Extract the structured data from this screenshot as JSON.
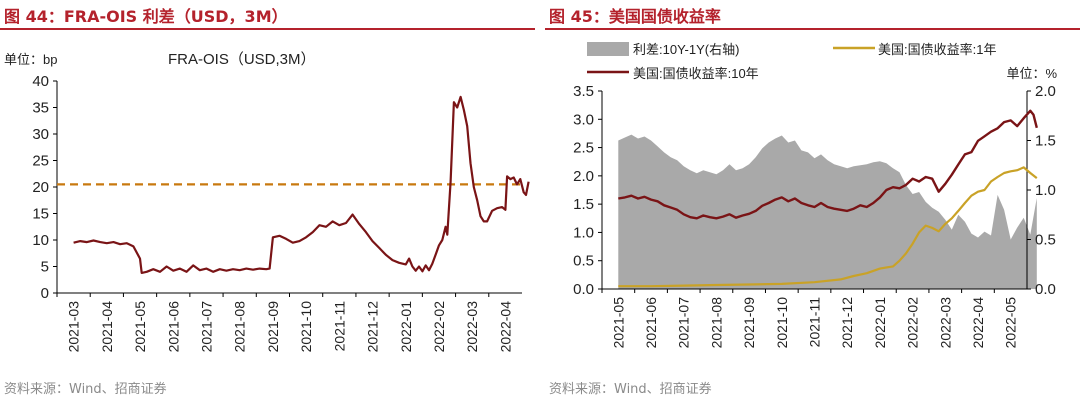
{
  "left": {
    "figure_title": "图 44：FRA-OIS 利差（USD，3M）",
    "source": "资料来源：Wind、招商证券",
    "unit_label": "单位：bp",
    "legend_label": "FRA-OIS（USD,3M）",
    "colors": {
      "line": "#7a1416",
      "ref": "#c8790f",
      "title": "#b4222c"
    }
  },
  "right": {
    "figure_title": "图 45：美国国债收益率",
    "source": "资料来源：Wind、招商证券",
    "unit_label": "单位：%",
    "legend": {
      "spread": "利差:10Y-1Y(右轴)",
      "y1": "美国:国债收益率:1年",
      "y10": "美国:国债收益率:10年"
    },
    "colors": {
      "spread": "#a9a9a9",
      "y1": "#c9a227",
      "y10": "#7a1416"
    }
  },
  "chart_data": [
    {
      "type": "line",
      "title": "FRA-OIS（USD,3M）",
      "ylabel": "bp",
      "ylim": [
        0,
        40
      ],
      "yticks": [
        0,
        5,
        10,
        15,
        20,
        25,
        30,
        35,
        40
      ],
      "xticks": [
        "2021-03",
        "2021-04",
        "2021-05",
        "2021-06",
        "2021-07",
        "2021-08",
        "2021-09",
        "2021-10",
        "2021-11",
        "2021-12",
        "2022-01",
        "2022-02",
        "2022-03",
        "2022-04"
      ],
      "grid": false,
      "reference_line": 20.5,
      "series": [
        {
          "name": "FRA-OIS（USD,3M）",
          "points": [
            [
              0,
              9.5
            ],
            [
              0.2,
              9.8
            ],
            [
              0.4,
              9.6
            ],
            [
              0.6,
              9.9
            ],
            [
              0.8,
              9.6
            ],
            [
              1.0,
              9.4
            ],
            [
              1.2,
              9.6
            ],
            [
              1.4,
              9.2
            ],
            [
              1.6,
              9.4
            ],
            [
              1.8,
              8.8
            ],
            [
              2.0,
              6.5
            ],
            [
              2.05,
              3.8
            ],
            [
              2.2,
              4.0
            ],
            [
              2.4,
              4.5
            ],
            [
              2.6,
              4.0
            ],
            [
              2.8,
              5.0
            ],
            [
              3.0,
              4.2
            ],
            [
              3.2,
              4.6
            ],
            [
              3.4,
              4.0
            ],
            [
              3.6,
              5.2
            ],
            [
              3.8,
              4.3
            ],
            [
              4.0,
              4.6
            ],
            [
              4.2,
              4.0
            ],
            [
              4.4,
              4.5
            ],
            [
              4.6,
              4.2
            ],
            [
              4.8,
              4.5
            ],
            [
              5.0,
              4.3
            ],
            [
              5.2,
              4.6
            ],
            [
              5.4,
              4.4
            ],
            [
              5.6,
              4.6
            ],
            [
              5.8,
              4.5
            ],
            [
              5.9,
              4.6
            ],
            [
              6.0,
              10.5
            ],
            [
              6.2,
              10.8
            ],
            [
              6.4,
              10.2
            ],
            [
              6.6,
              9.5
            ],
            [
              6.8,
              9.8
            ],
            [
              7.0,
              10.5
            ],
            [
              7.2,
              11.5
            ],
            [
              7.4,
              12.8
            ],
            [
              7.6,
              12.5
            ],
            [
              7.8,
              13.5
            ],
            [
              8.0,
              12.8
            ],
            [
              8.2,
              13.2
            ],
            [
              8.4,
              14.8
            ],
            [
              8.6,
              13.0
            ],
            [
              8.8,
              11.5
            ],
            [
              9.0,
              9.8
            ],
            [
              9.2,
              8.5
            ],
            [
              9.4,
              7.2
            ],
            [
              9.6,
              6.2
            ],
            [
              9.8,
              5.7
            ],
            [
              10.0,
              5.4
            ],
            [
              10.1,
              6.5
            ],
            [
              10.2,
              5.0
            ],
            [
              10.3,
              4.2
            ],
            [
              10.4,
              5.0
            ],
            [
              10.5,
              4.1
            ],
            [
              10.6,
              5.2
            ],
            [
              10.7,
              4.3
            ],
            [
              10.8,
              5.5
            ],
            [
              10.9,
              7.2
            ],
            [
              11.0,
              9.0
            ],
            [
              11.1,
              10.0
            ],
            [
              11.2,
              12.5
            ],
            [
              11.25,
              11.0
            ],
            [
              11.35,
              21.0
            ],
            [
              11.45,
              36.0
            ],
            [
              11.55,
              35.0
            ],
            [
              11.65,
              37.0
            ],
            [
              11.75,
              34.5
            ],
            [
              11.85,
              31.5
            ],
            [
              11.95,
              24.5
            ],
            [
              12.05,
              20.0
            ],
            [
              12.15,
              17.5
            ],
            [
              12.25,
              14.5
            ],
            [
              12.35,
              13.5
            ],
            [
              12.45,
              13.5
            ],
            [
              12.6,
              15.5
            ],
            [
              12.75,
              16.0
            ],
            [
              12.9,
              16.2
            ],
            [
              13.0,
              15.7
            ],
            [
              13.05,
              22.0
            ],
            [
              13.15,
              21.5
            ],
            [
              13.25,
              21.8
            ],
            [
              13.35,
              20.5
            ],
            [
              13.45,
              21.5
            ],
            [
              13.55,
              19.0
            ],
            [
              13.62,
              18.5
            ],
            [
              13.7,
              21.0
            ]
          ]
        }
      ]
    },
    {
      "type": "area",
      "title": "",
      "ylabel": "%",
      "ylim": [
        0,
        3.5
      ],
      "y2lim": [
        0,
        2.0
      ],
      "yticks": [
        0,
        0.5,
        1.0,
        1.5,
        2.0,
        2.5,
        3.0,
        3.5
      ],
      "y2ticks": [
        0,
        0.5,
        1.0,
        1.5,
        2.0
      ],
      "xticks": [
        "2021-05",
        "2021-06",
        "2021-07",
        "2021-08",
        "2021-09",
        "2021-10",
        "2021-11",
        "2021-12",
        "2022-01",
        "2022-02",
        "2022-03",
        "2022-04",
        "2022-05"
      ],
      "grid": false,
      "legend_position": "top",
      "series": [
        {
          "name": "利差:10Y-1Y(右轴)",
          "axis": "right",
          "kind": "area",
          "points": [
            [
              0,
              1.5
            ],
            [
              0.2,
              1.53
            ],
            [
              0.4,
              1.56
            ],
            [
              0.6,
              1.52
            ],
            [
              0.8,
              1.54
            ],
            [
              1.0,
              1.5
            ],
            [
              1.2,
              1.44
            ],
            [
              1.4,
              1.38
            ],
            [
              1.6,
              1.33
            ],
            [
              1.8,
              1.3
            ],
            [
              2.0,
              1.24
            ],
            [
              2.2,
              1.2
            ],
            [
              2.4,
              1.17
            ],
            [
              2.6,
              1.2
            ],
            [
              2.8,
              1.18
            ],
            [
              3.0,
              1.16
            ],
            [
              3.2,
              1.2
            ],
            [
              3.4,
              1.26
            ],
            [
              3.6,
              1.2
            ],
            [
              3.8,
              1.22
            ],
            [
              4.0,
              1.26
            ],
            [
              4.2,
              1.33
            ],
            [
              4.4,
              1.42
            ],
            [
              4.6,
              1.48
            ],
            [
              4.8,
              1.52
            ],
            [
              5.0,
              1.55
            ],
            [
              5.2,
              1.48
            ],
            [
              5.4,
              1.5
            ],
            [
              5.6,
              1.4
            ],
            [
              5.8,
              1.38
            ],
            [
              6.0,
              1.32
            ],
            [
              6.2,
              1.36
            ],
            [
              6.4,
              1.3
            ],
            [
              6.6,
              1.26
            ],
            [
              6.8,
              1.24
            ],
            [
              7.0,
              1.22
            ],
            [
              7.2,
              1.24
            ],
            [
              7.4,
              1.25
            ],
            [
              7.6,
              1.26
            ],
            [
              7.8,
              1.28
            ],
            [
              8.0,
              1.29
            ],
            [
              8.2,
              1.27
            ],
            [
              8.4,
              1.22
            ],
            [
              8.6,
              1.18
            ],
            [
              8.8,
              1.05
            ],
            [
              9.0,
              0.96
            ],
            [
              9.2,
              0.98
            ],
            [
              9.4,
              0.88
            ],
            [
              9.6,
              0.82
            ],
            [
              9.8,
              0.78
            ],
            [
              10.0,
              0.7
            ],
            [
              10.2,
              0.6
            ],
            [
              10.4,
              0.75
            ],
            [
              10.6,
              0.68
            ],
            [
              10.8,
              0.56
            ],
            [
              11.0,
              0.52
            ],
            [
              11.2,
              0.58
            ],
            [
              11.4,
              0.54
            ],
            [
              11.6,
              0.95
            ],
            [
              11.8,
              0.8
            ],
            [
              12.0,
              0.5
            ],
            [
              12.2,
              0.62
            ],
            [
              12.4,
              0.72
            ],
            [
              12.6,
              0.55
            ],
            [
              12.8,
              0.92
            ]
          ]
        },
        {
          "name": "美国:国债收益率:1年",
          "axis": "left",
          "kind": "line",
          "points": [
            [
              0,
              0.05
            ],
            [
              1,
              0.05
            ],
            [
              2,
              0.06
            ],
            [
              3,
              0.07
            ],
            [
              4,
              0.08
            ],
            [
              5,
              0.09
            ],
            [
              6,
              0.12
            ],
            [
              6.8,
              0.17
            ],
            [
              7.2,
              0.23
            ],
            [
              7.6,
              0.28
            ],
            [
              8.0,
              0.36
            ],
            [
              8.4,
              0.4
            ],
            [
              8.6,
              0.5
            ],
            [
              8.8,
              0.63
            ],
            [
              9.0,
              0.8
            ],
            [
              9.2,
              1.0
            ],
            [
              9.4,
              1.12
            ],
            [
              9.6,
              1.08
            ],
            [
              9.8,
              1.02
            ],
            [
              10.0,
              1.15
            ],
            [
              10.2,
              1.25
            ],
            [
              10.4,
              1.38
            ],
            [
              10.6,
              1.52
            ],
            [
              10.8,
              1.65
            ],
            [
              11.0,
              1.72
            ],
            [
              11.2,
              1.75
            ],
            [
              11.4,
              1.9
            ],
            [
              11.6,
              1.98
            ],
            [
              11.8,
              2.05
            ],
            [
              12.0,
              2.08
            ],
            [
              12.2,
              2.1
            ],
            [
              12.4,
              2.15
            ],
            [
              12.6,
              2.05
            ],
            [
              12.8,
              1.96
            ]
          ]
        },
        {
          "name": "美国:国债收益率:10年",
          "axis": "left",
          "kind": "line",
          "points": [
            [
              0,
              1.6
            ],
            [
              0.2,
              1.62
            ],
            [
              0.4,
              1.65
            ],
            [
              0.6,
              1.6
            ],
            [
              0.8,
              1.63
            ],
            [
              1.0,
              1.58
            ],
            [
              1.2,
              1.55
            ],
            [
              1.4,
              1.48
            ],
            [
              1.6,
              1.44
            ],
            [
              1.8,
              1.4
            ],
            [
              2.0,
              1.32
            ],
            [
              2.2,
              1.27
            ],
            [
              2.4,
              1.25
            ],
            [
              2.6,
              1.3
            ],
            [
              2.8,
              1.27
            ],
            [
              3.0,
              1.25
            ],
            [
              3.2,
              1.28
            ],
            [
              3.4,
              1.32
            ],
            [
              3.6,
              1.26
            ],
            [
              3.8,
              1.3
            ],
            [
              4.0,
              1.33
            ],
            [
              4.2,
              1.38
            ],
            [
              4.4,
              1.47
            ],
            [
              4.6,
              1.52
            ],
            [
              4.8,
              1.58
            ],
            [
              5.0,
              1.62
            ],
            [
              5.2,
              1.55
            ],
            [
              5.4,
              1.6
            ],
            [
              5.6,
              1.52
            ],
            [
              5.8,
              1.48
            ],
            [
              6.0,
              1.45
            ],
            [
              6.2,
              1.52
            ],
            [
              6.4,
              1.45
            ],
            [
              6.6,
              1.42
            ],
            [
              6.8,
              1.4
            ],
            [
              7.0,
              1.38
            ],
            [
              7.2,
              1.42
            ],
            [
              7.4,
              1.48
            ],
            [
              7.6,
              1.45
            ],
            [
              7.8,
              1.52
            ],
            [
              8.0,
              1.62
            ],
            [
              8.2,
              1.75
            ],
            [
              8.4,
              1.8
            ],
            [
              8.6,
              1.78
            ],
            [
              8.8,
              1.84
            ],
            [
              9.0,
              1.95
            ],
            [
              9.2,
              1.9
            ],
            [
              9.4,
              1.98
            ],
            [
              9.6,
              1.95
            ],
            [
              9.8,
              1.72
            ],
            [
              10.0,
              1.86
            ],
            [
              10.2,
              2.02
            ],
            [
              10.4,
              2.2
            ],
            [
              10.6,
              2.38
            ],
            [
              10.8,
              2.42
            ],
            [
              11.0,
              2.62
            ],
            [
              11.2,
              2.7
            ],
            [
              11.4,
              2.78
            ],
            [
              11.6,
              2.84
            ],
            [
              11.8,
              2.95
            ],
            [
              12.0,
              2.98
            ],
            [
              12.2,
              2.88
            ],
            [
              12.4,
              3.02
            ],
            [
              12.6,
              3.15
            ],
            [
              12.7,
              3.08
            ],
            [
              12.8,
              2.85
            ]
          ]
        }
      ]
    }
  ]
}
